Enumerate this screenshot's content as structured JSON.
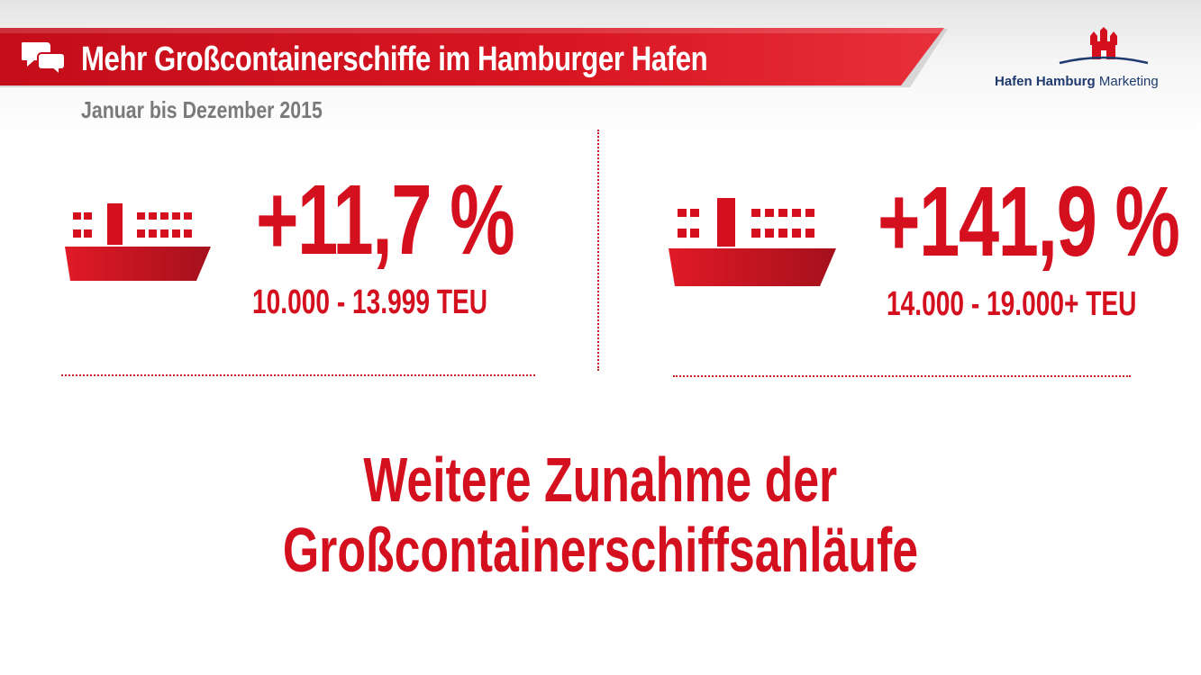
{
  "header": {
    "title": "Mehr Großcontainerschiffe im Hamburger Hafen",
    "subtitle": "Januar bis Dezember 2015",
    "icon": "chat-bubbles-icon"
  },
  "logo": {
    "brand_bold": "Hafen Hamburg",
    "brand_light": "Marketing",
    "icon": "hamburg-castle-icon"
  },
  "stats": [
    {
      "percent": "+11,7 %",
      "range": "10.000 - 13.999 TEU",
      "icon": "container-ship-icon"
    },
    {
      "percent": "+141,9 %",
      "range": "14.000 - 19.000+ TEU",
      "icon": "container-ship-icon"
    }
  ],
  "headline": {
    "line1": "Weitere Zunahme der",
    "line2": "Großcontainerschiffsanläufe"
  },
  "colors": {
    "accent_red": "#d40f1e",
    "dark_red": "#a4101c",
    "subtitle_gray": "#7a7a7a",
    "logo_blue": "#1e3a6e"
  }
}
